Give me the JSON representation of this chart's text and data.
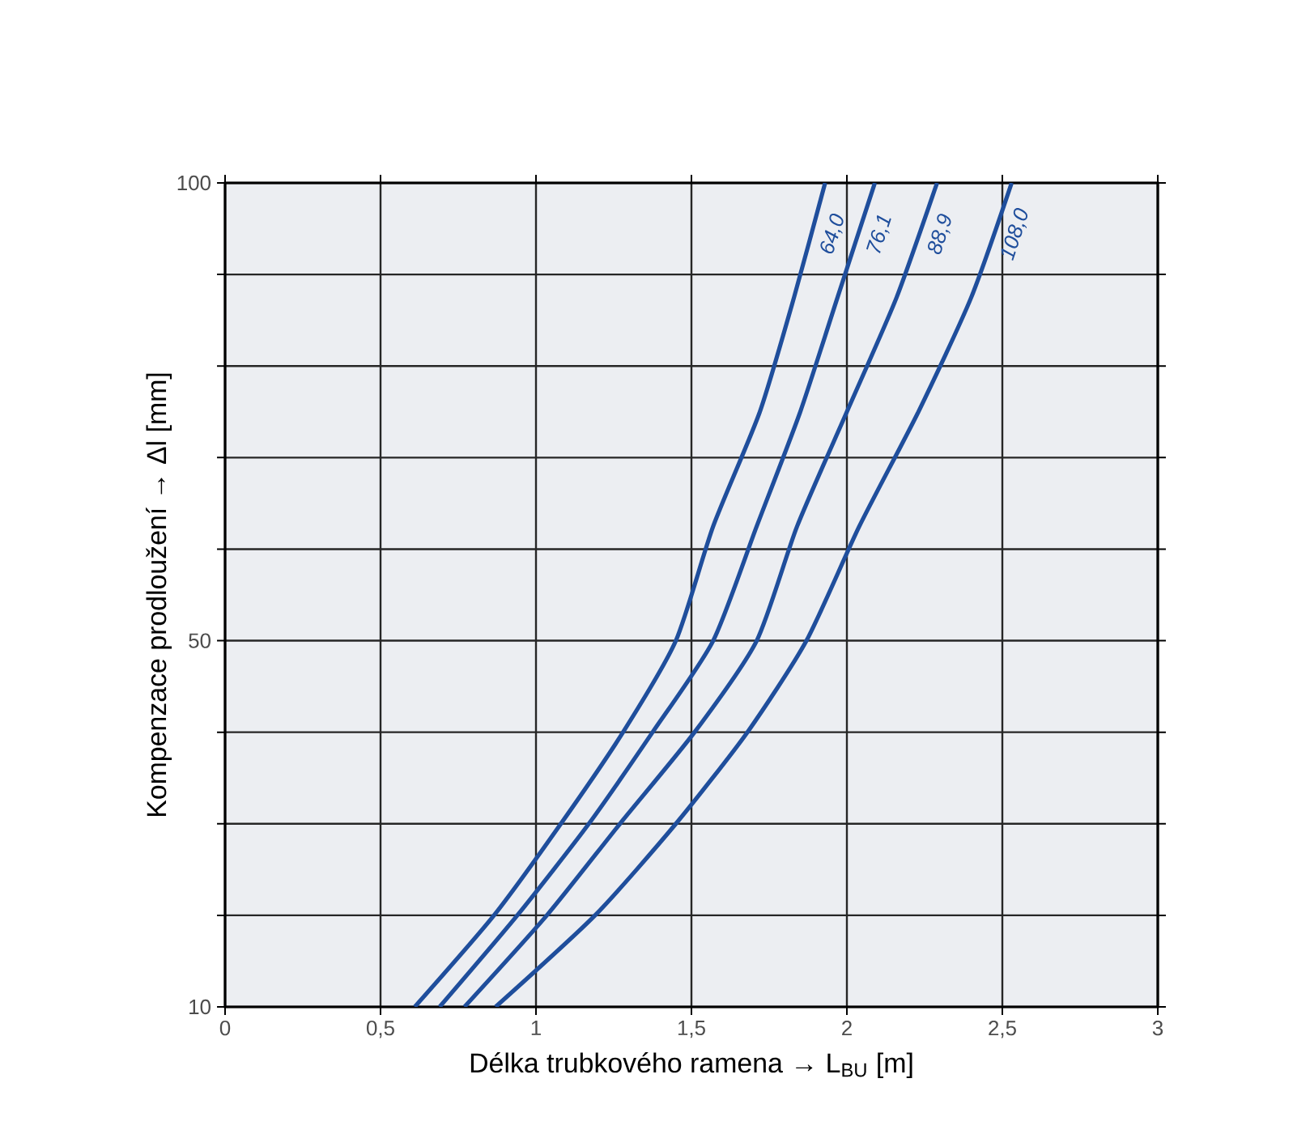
{
  "chart_data": {
    "type": "line",
    "xlabel": "Délka trubkového ramena → L$_{BU}$ [m]",
    "ylabel": "Kompenzace prodloužení → Δl [mm]",
    "xlim": [
      0,
      3
    ],
    "ylim": [
      10,
      100
    ],
    "xticks": [
      0,
      {
        "value": 0.5,
        "label": "0,5"
      },
      1,
      {
        "value": 1.5,
        "label": "1,5"
      },
      2,
      {
        "value": 2.5,
        "label": "2,5"
      },
      3
    ],
    "yticks": [
      10,
      {
        "value": 20,
        "label": null
      },
      {
        "value": 30,
        "label": null
      },
      {
        "value": 40,
        "label": null
      },
      50,
      {
        "value": 60,
        "label": null
      },
      {
        "value": 70,
        "label": null
      },
      {
        "value": 80,
        "label": null
      },
      {
        "value": 90,
        "label": null
      },
      100
    ],
    "grid": true,
    "series": [
      {
        "name": "64,0",
        "color": "#1f4e9c",
        "x": [
          0.61,
          0.865,
          1.08,
          1.28,
          1.45,
          1.57,
          1.72,
          1.83,
          1.93
        ],
        "values": [
          10,
          20,
          30,
          40,
          50,
          62.5,
          75,
          87.5,
          100
        ]
      },
      {
        "name": "76,1",
        "color": "#1f4e9c",
        "x": [
          0.69,
          0.94,
          1.17,
          1.375,
          1.57,
          1.71,
          1.85,
          1.97,
          2.09
        ],
        "values": [
          10,
          20,
          30,
          40,
          50,
          62.5,
          75,
          87.5,
          100
        ]
      },
      {
        "name": "88,9",
        "color": "#1f4e9c",
        "x": [
          0.77,
          1.035,
          1.27,
          1.51,
          1.71,
          1.84,
          2.0,
          2.16,
          2.29
        ],
        "values": [
          10,
          20,
          30,
          40,
          50,
          62.5,
          75,
          87.5,
          100
        ]
      },
      {
        "name": "108,0",
        "color": "#1f4e9c",
        "x": [
          0.87,
          1.19,
          1.45,
          1.68,
          1.87,
          2.04,
          2.23,
          2.4,
          2.53
        ],
        "values": [
          10,
          20,
          30,
          40,
          50,
          62.5,
          75,
          87.5,
          100
        ]
      }
    ]
  }
}
